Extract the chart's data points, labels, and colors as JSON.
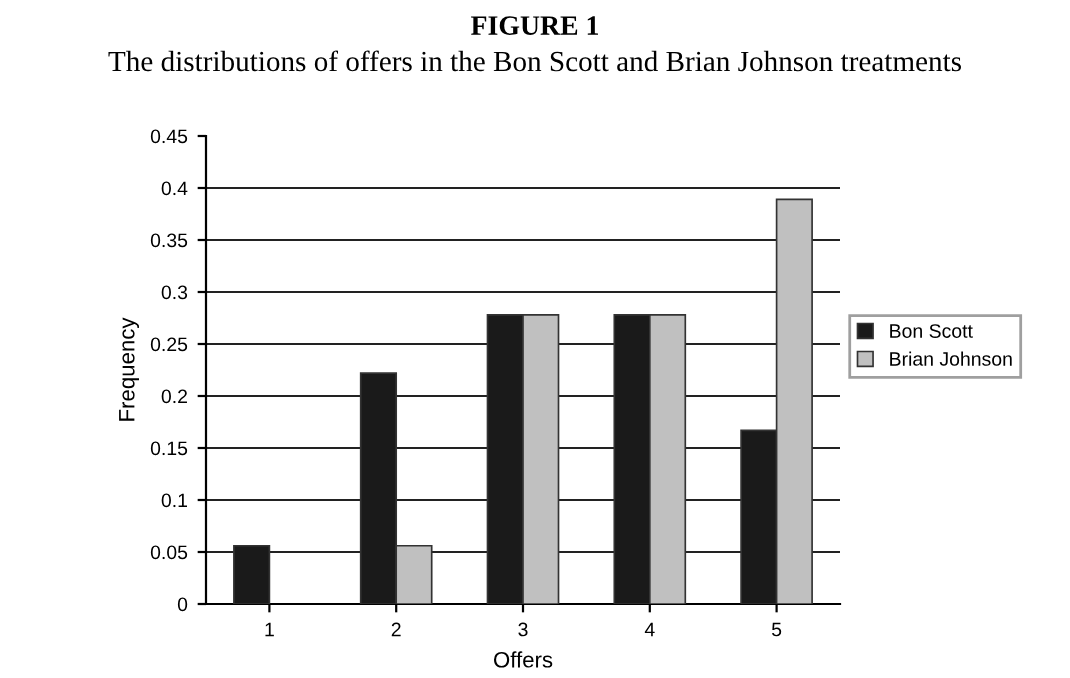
{
  "chart_data": {
    "type": "bar",
    "title": "FIGURE 1",
    "subtitle": "The distributions of offers in the Bon Scott and Brian Johnson treatments",
    "xlabel": "Offers",
    "ylabel": "Frequency",
    "categories": [
      "1",
      "2",
      "3",
      "4",
      "5"
    ],
    "series": [
      {
        "name": "Bon Scott",
        "color": "#1a1a1a",
        "values": [
          0.056,
          0.222,
          0.278,
          0.278,
          0.167
        ]
      },
      {
        "name": "Brian Johnson",
        "color": "#c0c0c0",
        "values": [
          0,
          0.056,
          0.278,
          0.278,
          0.389
        ]
      }
    ],
    "ylim": [
      0,
      0.45
    ],
    "yticks": [
      0,
      0.05,
      0.1,
      0.15,
      0.2,
      0.25,
      0.3,
      0.35,
      0.4,
      0.45
    ],
    "grid": "y",
    "legend": "right"
  }
}
